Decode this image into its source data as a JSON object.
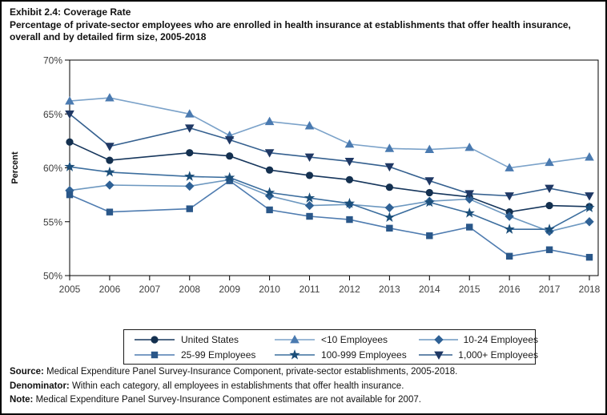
{
  "title": {
    "exhibit": "Exhibit 2.4: Coverage Rate",
    "subtitle": "Percentage of private-sector employees who are enrolled in health insurance at establishments that offer health insurance, overall and by detailed firm size, 2005-2018"
  },
  "chart_data": {
    "type": "line",
    "title": "Exhibit 2.4: Coverage Rate",
    "xlabel": "",
    "ylabel": "Percent",
    "ylim": [
      50,
      70
    ],
    "ytick_step": 5,
    "ytick_labels": [
      "50%",
      "55%",
      "60%",
      "65%",
      "70%"
    ],
    "x_years": [
      2005,
      2006,
      2007,
      2008,
      2009,
      2010,
      2011,
      2012,
      2013,
      2014,
      2015,
      2016,
      2017,
      2018
    ],
    "data_years": [
      2005,
      2006,
      2008,
      2009,
      2010,
      2011,
      2012,
      2013,
      2014,
      2015,
      2016,
      2017,
      2018
    ],
    "missing_year": 2007,
    "grid": false,
    "legend_position": "bottom",
    "series": [
      {
        "name": "United States",
        "marker": "circle",
        "marker_color": "#14304f",
        "line_color": "#16365c",
        "values": [
          62.4,
          60.7,
          61.4,
          61.1,
          59.8,
          59.3,
          58.9,
          58.2,
          57.7,
          57.3,
          55.9,
          56.5,
          56.4
        ]
      },
      {
        "name": "<10 Employees",
        "marker": "triangle-up",
        "marker_color": "#4a7ab0",
        "line_color": "#7ba2c9",
        "values": [
          66.2,
          66.5,
          65.0,
          63.0,
          64.3,
          63.9,
          62.2,
          61.8,
          61.7,
          61.9,
          60.0,
          60.5,
          61.0
        ]
      },
      {
        "name": "10-24 Employees",
        "marker": "diamond",
        "marker_color": "#2f6195",
        "line_color": "#6d98c0",
        "values": [
          57.9,
          58.4,
          58.3,
          58.9,
          57.4,
          56.5,
          56.6,
          56.3,
          56.9,
          57.1,
          55.5,
          54.1,
          55.0
        ]
      },
      {
        "name": "25-99 Employees",
        "marker": "square",
        "marker_color": "#2a5789",
        "line_color": "#4f7cb0",
        "values": [
          57.5,
          55.9,
          56.2,
          58.8,
          56.1,
          55.5,
          55.2,
          54.4,
          53.7,
          54.5,
          51.8,
          52.4,
          51.7
        ]
      },
      {
        "name": "100-999 Employees",
        "marker": "star",
        "marker_color": "#1b4e79",
        "line_color": "#3c6e9e",
        "values": [
          60.1,
          59.6,
          59.2,
          59.1,
          57.7,
          57.2,
          56.7,
          55.4,
          56.8,
          55.8,
          54.3,
          54.3,
          56.3
        ]
      },
      {
        "name": "1,000+ Employees",
        "marker": "triangle-down",
        "marker_color": "#1f3864",
        "line_color": "#35608f",
        "values": [
          65.0,
          62.0,
          63.7,
          62.6,
          61.4,
          61.0,
          60.6,
          60.1,
          58.8,
          57.6,
          57.4,
          58.1,
          57.4
        ]
      }
    ]
  },
  "footnotes": [
    {
      "label": "Source:",
      "text": " Medical Expenditure Panel Survey-Insurance Component, private-sector establishments, 2005-2018."
    },
    {
      "label": "Denominator:",
      "text": " Within each category, all employees in establishments that offer health insurance."
    },
    {
      "label": "Note:",
      "text": " Medical Expenditure Panel Survey-Insurance Component estimates are not available for 2007."
    }
  ]
}
